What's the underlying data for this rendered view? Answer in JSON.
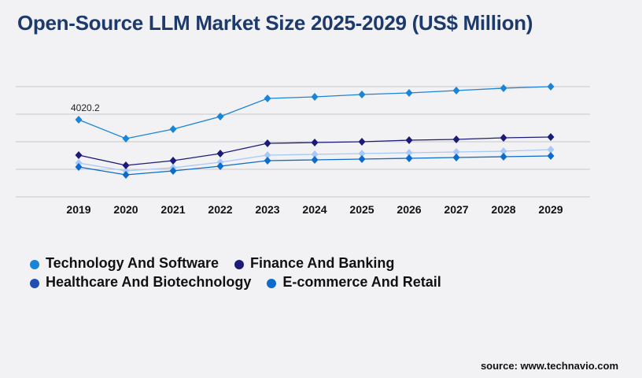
{
  "title": "Open-Source LLM Market Size 2025-2029 (US$ Million)",
  "source": "source: www.technavio.com",
  "chart_data": {
    "type": "line",
    "title": "Open-Source LLM Market Size 2025-2029 (US$ Million)",
    "xlabel": "",
    "ylabel": "",
    "categories": [
      "2019",
      "2020",
      "2021",
      "2022",
      "2023",
      "2024",
      "2025",
      "2026",
      "2027",
      "2028",
      "2029"
    ],
    "ylim": [
      0,
      5743
    ],
    "grid": true,
    "legend_position": "bottom",
    "annotations": [
      {
        "series": "Technology And Software",
        "category": "2019",
        "text": "4020.2"
      }
    ],
    "series": [
      {
        "name": "Technology And Software",
        "color": "#1a85d6",
        "legend_color": "#1a85d6",
        "values": [
          4020.2,
          3036,
          3528,
          4184,
          5128,
          5210,
          5333,
          5415,
          5538,
          5661,
          5743
        ]
      },
      {
        "name": "Finance And Banking",
        "color": "#1c1c78",
        "legend_color": "#1c1c78",
        "values": [
          2174,
          1641,
          1887,
          2256,
          2789,
          2830,
          2871,
          2953,
          2995,
          3077,
          3118
        ]
      },
      {
        "name": "Healthcare And Biotechnology",
        "color": "#a8c8f6",
        "legend_color": "#1f4fb3",
        "values": [
          1764,
          1354,
          1518,
          1805,
          2174,
          2215,
          2256,
          2297,
          2338,
          2379,
          2461
        ]
      },
      {
        "name": "E-commerce And Retail",
        "color": "#0b6ccb",
        "legend_color": "#0b6ccb",
        "values": [
          1559,
          1149,
          1354,
          1600,
          1887,
          1928,
          1969,
          2010,
          2051,
          2092,
          2133
        ]
      }
    ]
  }
}
